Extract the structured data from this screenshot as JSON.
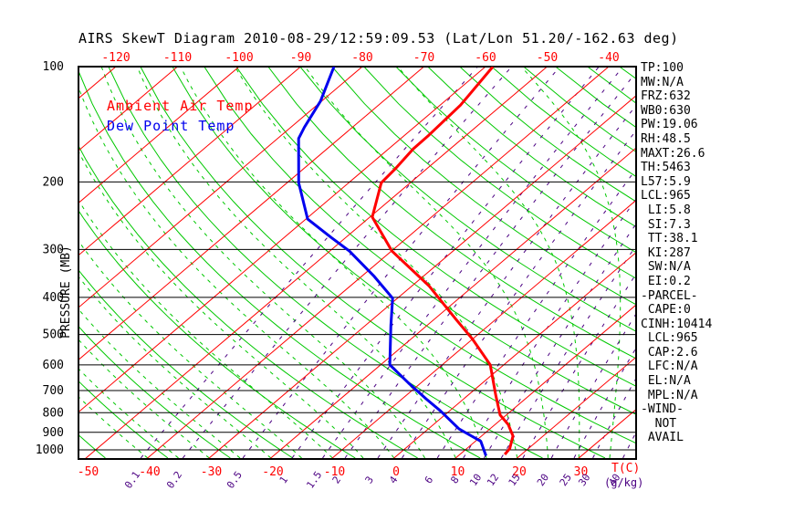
{
  "title": "AIRS SkewT Diagram 2010-08-29/12:59:09.53 (Lat/Lon 51.20/-162.63 deg)",
  "legend": {
    "ambient_label": "Ambient Air Temp",
    "dew_label": "Dew Point Temp"
  },
  "y_axis": {
    "label": "PRESSURE (MB)",
    "ticks": [
      100,
      200,
      300,
      400,
      500,
      600,
      700,
      800,
      900,
      1000
    ]
  },
  "x_axis": {
    "top_labels": [
      -120,
      -110,
      -100,
      -90,
      -80,
      -70,
      -60,
      -50,
      -40
    ],
    "bottom_labels": [
      -50,
      -40,
      -30,
      -20,
      -10,
      0,
      10,
      20,
      30
    ],
    "unit_label": "T(C)"
  },
  "mixing_axis": {
    "labels": [
      "0.1",
      "0.2",
      "0.5",
      "1",
      "1.5",
      "2",
      "3",
      "4",
      "6",
      "8",
      "10",
      "12",
      "15",
      "20",
      "25",
      "30",
      "40"
    ],
    "values": [
      0.1,
      0.2,
      0.5,
      1,
      1.5,
      2,
      3,
      4,
      6,
      8,
      10,
      12,
      15,
      20,
      25,
      30,
      40
    ],
    "unit_label": "(g/kg)"
  },
  "stats": [
    "TP:100",
    "MW:N/A",
    "FRZ:632",
    "WB0:630",
    "PW:19.06",
    "RH:48.5",
    "MAXT:26.6",
    "TH:5463",
    "L57:5.9",
    "LCL:965",
    " LI:5.8",
    " SI:7.3",
    " TT:38.1",
    " KI:287",
    " SW:N/A",
    " EI:0.2",
    "-PARCEL-",
    " CAPE:0",
    "CINH:10414",
    " LCL:965",
    " CAP:2.6",
    " LFC:N/A",
    " EL:N/A",
    " MPL:N/A",
    "-WIND-",
    "  NOT",
    " AVAIL"
  ],
  "colors": {
    "isotherm": "#ff0000",
    "dry_adiabat": "#00c800",
    "moist_adiabat": "#00c800",
    "mixing_ratio": "#4b0082",
    "temp_curve": "#ff0000",
    "dew_curve": "#0000ee",
    "pressure_line": "#000000",
    "frame": "#000000",
    "title_text": "#000000"
  },
  "chart_data": {
    "type": "line",
    "subtype": "skew-t log-p thermodynamic diagram",
    "title": "AIRS SkewT Diagram 2010-08-29/12:59:09.53 (Lat/Lon 51.20/-162.63 deg)",
    "xlabel": "T(C)",
    "ylabel": "PRESSURE (MB)",
    "y_scale": "log",
    "pressure_range_mb": [
      100,
      1050
    ],
    "temp_labels_top_c": [
      -120,
      -110,
      -100,
      -90,
      -80,
      -70,
      -60,
      -50,
      -40
    ],
    "temp_labels_bottom_c": [
      -50,
      -40,
      -30,
      -20,
      -10,
      0,
      10,
      20,
      30
    ],
    "isotherm_step_c": 10,
    "isotherm_range_c": [
      -120,
      30
    ],
    "pressure_lines_mb": [
      100,
      200,
      300,
      400,
      500,
      600,
      700,
      800,
      900,
      1000
    ],
    "dry_adiabat_theta_c": [
      -60,
      -50,
      -40,
      -30,
      -20,
      -10,
      0,
      10,
      20,
      30,
      40,
      50,
      60,
      70,
      80,
      90,
      100,
      110,
      120,
      130,
      140,
      150,
      160,
      170,
      180,
      190
    ],
    "moist_adiabat_thetaw_c": [
      -40,
      -35,
      -30,
      -25,
      -20,
      -15,
      -10,
      -5,
      0,
      5,
      10,
      15,
      20,
      25,
      30,
      35,
      40,
      45
    ],
    "mixing_ratio_lines_g_kg": [
      0.1,
      0.2,
      0.5,
      1,
      1.5,
      2,
      3,
      4,
      6,
      8,
      10,
      12,
      15,
      20,
      25,
      30,
      40
    ],
    "series": [
      {
        "name": "Ambient Air Temp",
        "color": "#ff0000",
        "points": [
          {
            "p": 100,
            "t": -58.8
          },
          {
            "p": 126,
            "t": -56.7
          },
          {
            "p": 151,
            "t": -56.1
          },
          {
            "p": 164,
            "t": -56.0
          },
          {
            "p": 185,
            "t": -55.1
          },
          {
            "p": 201,
            "t": -54.7
          },
          {
            "p": 247,
            "t": -49.6
          },
          {
            "p": 303,
            "t": -39.9
          },
          {
            "p": 373,
            "t": -27.3
          },
          {
            "p": 457,
            "t": -16.4
          },
          {
            "p": 514,
            "t": -10.0
          },
          {
            "p": 600,
            "t": -2.2
          },
          {
            "p": 720,
            "t": 4.5
          },
          {
            "p": 811,
            "t": 9.0
          },
          {
            "p": 858,
            "t": 12.1
          },
          {
            "p": 920,
            "t": 15.1
          },
          {
            "p": 993,
            "t": 17.0
          },
          {
            "p": 1028,
            "t": 17.3
          }
        ]
      },
      {
        "name": "Dew Point Temp",
        "color": "#0000ee",
        "points": [
          {
            "p": 100,
            "t": -84.6
          },
          {
            "p": 123,
            "t": -80.2
          },
          {
            "p": 144,
            "t": -77.8
          },
          {
            "p": 154,
            "t": -76.6
          },
          {
            "p": 201,
            "t": -68.1
          },
          {
            "p": 250,
            "t": -59.7
          },
          {
            "p": 279,
            "t": -52.4
          },
          {
            "p": 303,
            "t": -46.8
          },
          {
            "p": 353,
            "t": -37.9
          },
          {
            "p": 402,
            "t": -30.8
          },
          {
            "p": 473,
            "t": -25.9
          },
          {
            "p": 600,
            "t": -18.5
          },
          {
            "p": 669,
            "t": -12.0
          },
          {
            "p": 736,
            "t": -6.1
          },
          {
            "p": 791,
            "t": -1.5
          },
          {
            "p": 882,
            "t": 5.0
          },
          {
            "p": 950,
            "t": 10.9
          },
          {
            "p": 1036,
            "t": 14.5
          }
        ]
      }
    ],
    "annotations": [
      "TP:100",
      "MW:N/A",
      "FRZ:632",
      "WB0:630",
      "PW:19.06",
      "RH:48.5",
      "MAXT:26.6",
      "TH:5463",
      "L57:5.9",
      "LCL:965",
      "LI:5.8",
      "SI:7.3",
      "TT:38.1",
      "KI:287",
      "SW:N/A",
      "EI:0.2",
      "-PARCEL-",
      "CAPE:0",
      "CINH:10414",
      "LCL:965",
      "CAP:2.6",
      "LFC:N/A",
      "EL:N/A",
      "MPL:N/A",
      "-WIND-",
      "NOT",
      "AVAIL"
    ]
  }
}
